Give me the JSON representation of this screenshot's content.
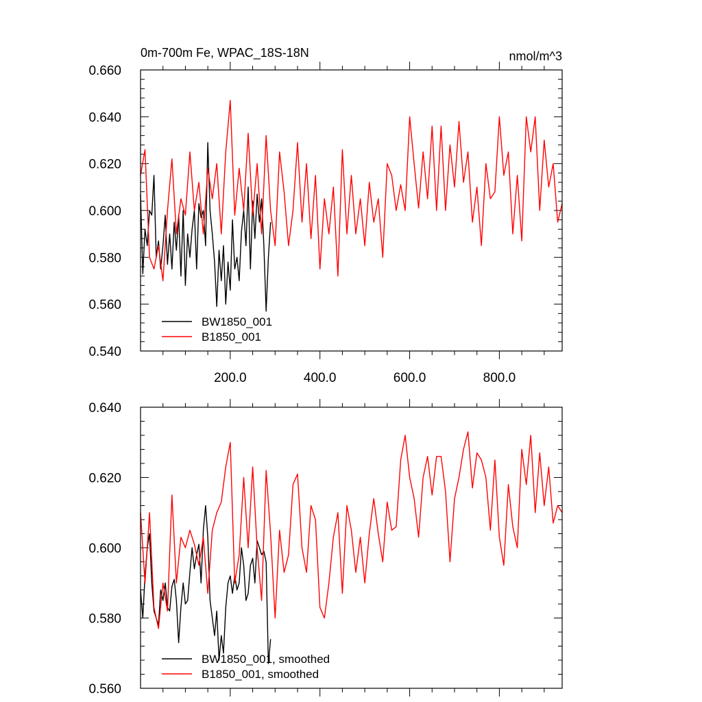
{
  "chart_data": [
    {
      "type": "line",
      "title_left": "0m-700m Fe, WPAC_18S-18N",
      "title_right": "nmol/m^3",
      "xlim": [
        0,
        940
      ],
      "ylim": [
        0.54,
        0.66
      ],
      "x_ticks": [
        200,
        400,
        600,
        800
      ],
      "x_tick_labels": [
        "200.0",
        "400.0",
        "600.0",
        "800.0"
      ],
      "y_ticks": [
        0.54,
        0.56,
        0.58,
        0.6,
        0.62,
        0.64,
        0.66
      ],
      "y_tick_labels": [
        "0.540",
        "0.560",
        "0.580",
        "0.600",
        "0.620",
        "0.640",
        "0.660"
      ],
      "legend_position": "bottom-left",
      "series": [
        {
          "name": "BW1850_001",
          "color": "#000000",
          "x": [
            0,
            5,
            10,
            15,
            20,
            25,
            30,
            35,
            40,
            45,
            50,
            55,
            60,
            65,
            70,
            75,
            80,
            85,
            90,
            95,
            100,
            105,
            110,
            115,
            120,
            125,
            130,
            135,
            140,
            145,
            150,
            155,
            160,
            165,
            170,
            175,
            180,
            185,
            190,
            195,
            200,
            205,
            210,
            215,
            220,
            225,
            230,
            235,
            240,
            245,
            250,
            255,
            260,
            265,
            270,
            275,
            280,
            285,
            290
          ],
          "values": [
            0.607,
            0.573,
            0.592,
            0.585,
            0.6,
            0.598,
            0.615,
            0.58,
            0.587,
            0.575,
            0.585,
            0.598,
            0.577,
            0.59,
            0.575,
            0.595,
            0.583,
            0.598,
            0.572,
            0.6,
            0.568,
            0.59,
            0.58,
            0.592,
            0.6,
            0.575,
            0.603,
            0.597,
            0.6,
            0.585,
            0.629,
            0.6,
            0.59,
            0.578,
            0.559,
            0.583,
            0.57,
            0.585,
            0.56,
            0.578,
            0.566,
            0.596,
            0.575,
            0.58,
            0.57,
            0.591,
            0.6,
            0.585,
            0.61,
            0.575,
            0.604,
            0.588,
            0.607,
            0.595,
            0.605,
            0.585,
            0.557,
            0.58,
            0.595
          ]
        },
        {
          "name": "B1850_001",
          "color": "#ff0000",
          "x": [
            0,
            10,
            20,
            30,
            40,
            50,
            60,
            70,
            80,
            90,
            100,
            110,
            120,
            130,
            140,
            150,
            160,
            170,
            180,
            190,
            200,
            210,
            220,
            230,
            240,
            250,
            260,
            270,
            280,
            290,
            300,
            310,
            320,
            330,
            340,
            350,
            360,
            370,
            380,
            390,
            400,
            410,
            420,
            430,
            440,
            450,
            460,
            470,
            480,
            490,
            500,
            510,
            520,
            530,
            540,
            550,
            560,
            570,
            580,
            590,
            600,
            610,
            620,
            630,
            640,
            650,
            660,
            670,
            680,
            690,
            700,
            710,
            720,
            730,
            740,
            750,
            760,
            770,
            780,
            790,
            800,
            810,
            820,
            830,
            840,
            850,
            860,
            870,
            880,
            890,
            900,
            910,
            920,
            930,
            940
          ],
          "values": [
            0.615,
            0.626,
            0.58,
            0.575,
            0.585,
            0.57,
            0.6,
            0.622,
            0.59,
            0.605,
            0.598,
            0.625,
            0.6,
            0.612,
            0.59,
            0.618,
            0.605,
            0.62,
            0.59,
            0.625,
            0.647,
            0.598,
            0.618,
            0.6,
            0.633,
            0.598,
            0.62,
            0.59,
            0.632,
            0.6,
            0.585,
            0.625,
            0.608,
            0.585,
            0.6,
            0.629,
            0.595,
            0.62,
            0.588,
            0.615,
            0.575,
            0.605,
            0.59,
            0.61,
            0.572,
            0.626,
            0.59,
            0.615,
            0.59,
            0.605,
            0.585,
            0.612,
            0.595,
            0.605,
            0.58,
            0.62,
            0.615,
            0.6,
            0.611,
            0.6,
            0.64,
            0.62,
            0.601,
            0.625,
            0.605,
            0.636,
            0.6,
            0.636,
            0.6,
            0.628,
            0.61,
            0.638,
            0.612,
            0.625,
            0.595,
            0.61,
            0.585,
            0.62,
            0.605,
            0.608,
            0.64,
            0.615,
            0.625,
            0.59,
            0.615,
            0.587,
            0.64,
            0.625,
            0.64,
            0.6,
            0.63,
            0.61,
            0.62,
            0.595,
            0.603
          ]
        }
      ]
    },
    {
      "type": "line",
      "xlim": [
        0,
        940
      ],
      "ylim": [
        0.56,
        0.64
      ],
      "x_ticks": [
        200,
        400,
        600,
        800
      ],
      "y_ticks": [
        0.56,
        0.58,
        0.6,
        0.62,
        0.64
      ],
      "y_tick_labels": [
        "0.560",
        "0.580",
        "0.600",
        "0.620",
        "0.640"
      ],
      "legend_position": "bottom-left",
      "series": [
        {
          "name": "BW1850_001, smoothed",
          "color": "#000000",
          "x": [
            0,
            5,
            10,
            15,
            20,
            25,
            30,
            35,
            40,
            45,
            50,
            55,
            60,
            65,
            70,
            75,
            80,
            85,
            90,
            95,
            100,
            105,
            110,
            115,
            120,
            125,
            130,
            135,
            140,
            145,
            150,
            155,
            160,
            165,
            170,
            175,
            180,
            185,
            190,
            195,
            200,
            205,
            210,
            215,
            220,
            225,
            230,
            235,
            240,
            245,
            250,
            255,
            260,
            265,
            270,
            275,
            280,
            285,
            290
          ],
          "values": [
            0.588,
            0.58,
            0.592,
            0.6,
            0.604,
            0.59,
            0.582,
            0.58,
            0.578,
            0.588,
            0.585,
            0.59,
            0.583,
            0.582,
            0.589,
            0.591,
            0.585,
            0.573,
            0.583,
            0.59,
            0.584,
            0.585,
            0.593,
            0.6,
            0.594,
            0.598,
            0.601,
            0.59,
            0.605,
            0.612,
            0.603,
            0.585,
            0.58,
            0.575,
            0.582,
            0.568,
            0.575,
            0.57,
            0.583,
            0.59,
            0.592,
            0.587,
            0.592,
            0.588,
            0.59,
            0.6,
            0.595,
            0.585,
            0.587,
            0.595,
            0.597,
            0.59,
            0.602,
            0.6,
            0.598,
            0.599,
            0.596,
            0.567,
            0.574
          ]
        },
        {
          "name": "B1850_001, smoothed",
          "color": "#ff0000",
          "x": [
            0,
            10,
            20,
            30,
            40,
            50,
            60,
            70,
            80,
            90,
            100,
            110,
            120,
            130,
            140,
            150,
            160,
            170,
            180,
            190,
            200,
            210,
            220,
            230,
            240,
            250,
            260,
            270,
            280,
            290,
            300,
            310,
            320,
            330,
            340,
            350,
            360,
            370,
            380,
            390,
            400,
            410,
            420,
            430,
            440,
            450,
            460,
            470,
            480,
            490,
            500,
            510,
            520,
            530,
            540,
            550,
            560,
            570,
            580,
            590,
            600,
            610,
            620,
            630,
            640,
            650,
            660,
            670,
            680,
            690,
            700,
            710,
            720,
            730,
            740,
            750,
            760,
            770,
            780,
            790,
            800,
            810,
            820,
            830,
            840,
            850,
            860,
            870,
            880,
            890,
            900,
            910,
            920,
            930,
            940
          ],
          "values": [
            0.61,
            0.59,
            0.61,
            0.583,
            0.577,
            0.59,
            0.582,
            0.615,
            0.59,
            0.603,
            0.6,
            0.605,
            0.601,
            0.595,
            0.603,
            0.587,
            0.605,
            0.61,
            0.613,
            0.623,
            0.63,
            0.59,
            0.598,
            0.62,
            0.6,
            0.623,
            0.6,
            0.585,
            0.622,
            0.604,
            0.58,
            0.605,
            0.593,
            0.598,
            0.618,
            0.621,
            0.6,
            0.593,
            0.612,
            0.608,
            0.583,
            0.58,
            0.59,
            0.603,
            0.61,
            0.587,
            0.612,
            0.605,
            0.593,
            0.603,
            0.59,
            0.604,
            0.614,
            0.604,
            0.596,
            0.613,
            0.605,
            0.606,
            0.625,
            0.632,
            0.62,
            0.614,
            0.603,
            0.62,
            0.626,
            0.615,
            0.626,
            0.626,
            0.616,
            0.596,
            0.614,
            0.62,
            0.628,
            0.633,
            0.617,
            0.627,
            0.625,
            0.62,
            0.605,
            0.625,
            0.603,
            0.595,
            0.618,
            0.606,
            0.6,
            0.628,
            0.618,
            0.632,
            0.61,
            0.627,
            0.612,
            0.623,
            0.607,
            0.612,
            0.61
          ]
        }
      ]
    }
  ]
}
